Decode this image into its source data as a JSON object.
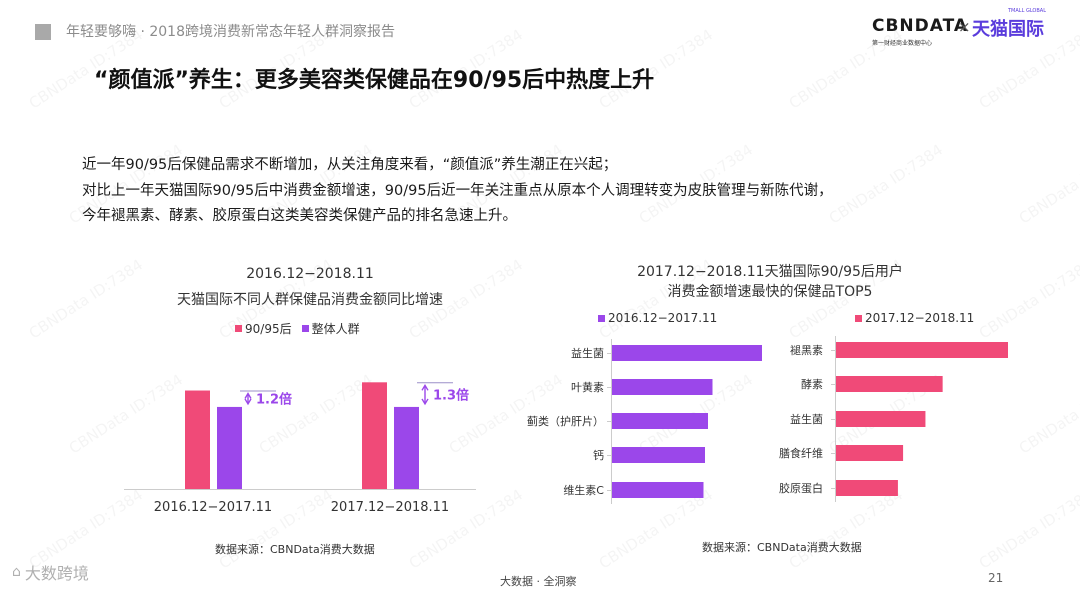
{
  "header": {
    "text": "年轻要够嗨 · 2018跨境消费新常态年轻人群洞察报告"
  },
  "logo": {
    "cbn": "CBNDATA",
    "x": "×",
    "tmall": "天猫国际",
    "tmall_small": "TMALL GLOBAL",
    "sub": "第一财经商业数据中心"
  },
  "page_title": "“颜值派”养生：更多美容类保健品在90/95后中热度上升",
  "intro": [
    "近一年90/95后保健品需求不断增加，从关注角度来看，“颜值派”养生潮正在兴起；",
    "对比上一年天猫国际90/95后中消费金额增速，90/95后近一年关注重点从原本个人调理转变为皮肤管理与新陈代谢，",
    "今年褪黑素、酵素、胶原蛋白这类美容类保健产品的排名急速上升。"
  ],
  "colors": {
    "pink": "#f04a78",
    "purple": "#9b47ea",
    "axis": "#cccccc"
  },
  "watermark": "CBNData ID:7384",
  "chart_data": [
    {
      "type": "bar",
      "title": "2016.12−2018.11",
      "subtitle": "天猫国际不同人群保健品消费金额同比增速",
      "categories": [
        "2016.12−2017.11",
        "2017.12−2018.11"
      ],
      "series": [
        {
          "name": "90/95后",
          "color": "#f04a78",
          "values": [
            1.2,
            1.3
          ]
        },
        {
          "name": "整体人群",
          "color": "#9b47ea",
          "values": [
            1.0,
            1.0
          ]
        }
      ],
      "annotations": [
        "1.2倍",
        "1.3倍"
      ],
      "ylim": [
        0,
        1.45
      ],
      "grid": false,
      "legend": "top-left",
      "source": "数据来源：CBNData消费大数据"
    },
    {
      "type": "bar",
      "orientation": "horizontal",
      "title": "2017.12−2018.11天猫国际90/95后用户",
      "subtitle": "消费金额增速最快的保健品TOP5",
      "source": "数据来源：CBNData消费大数据",
      "panels": [
        {
          "name": "2016.12−2017.11",
          "color": "#9b47ea",
          "categories": [
            "益生菌",
            "叶黄素",
            "蓟类（护肝片）",
            "钙",
            "维生素C"
          ],
          "values": [
            100,
            67,
            64,
            62,
            61
          ]
        },
        {
          "name": "2017.12−2018.11",
          "color": "#f04a78",
          "categories": [
            "褪黑素",
            "酵素",
            "益生菌",
            "膳食纤维",
            "胶原蛋白"
          ],
          "values": [
            100,
            62,
            52,
            39,
            36
          ]
        }
      ]
    }
  ],
  "footer": {
    "text": "大数据 · 全洞察",
    "page": "21",
    "corner": "大数跨境"
  }
}
